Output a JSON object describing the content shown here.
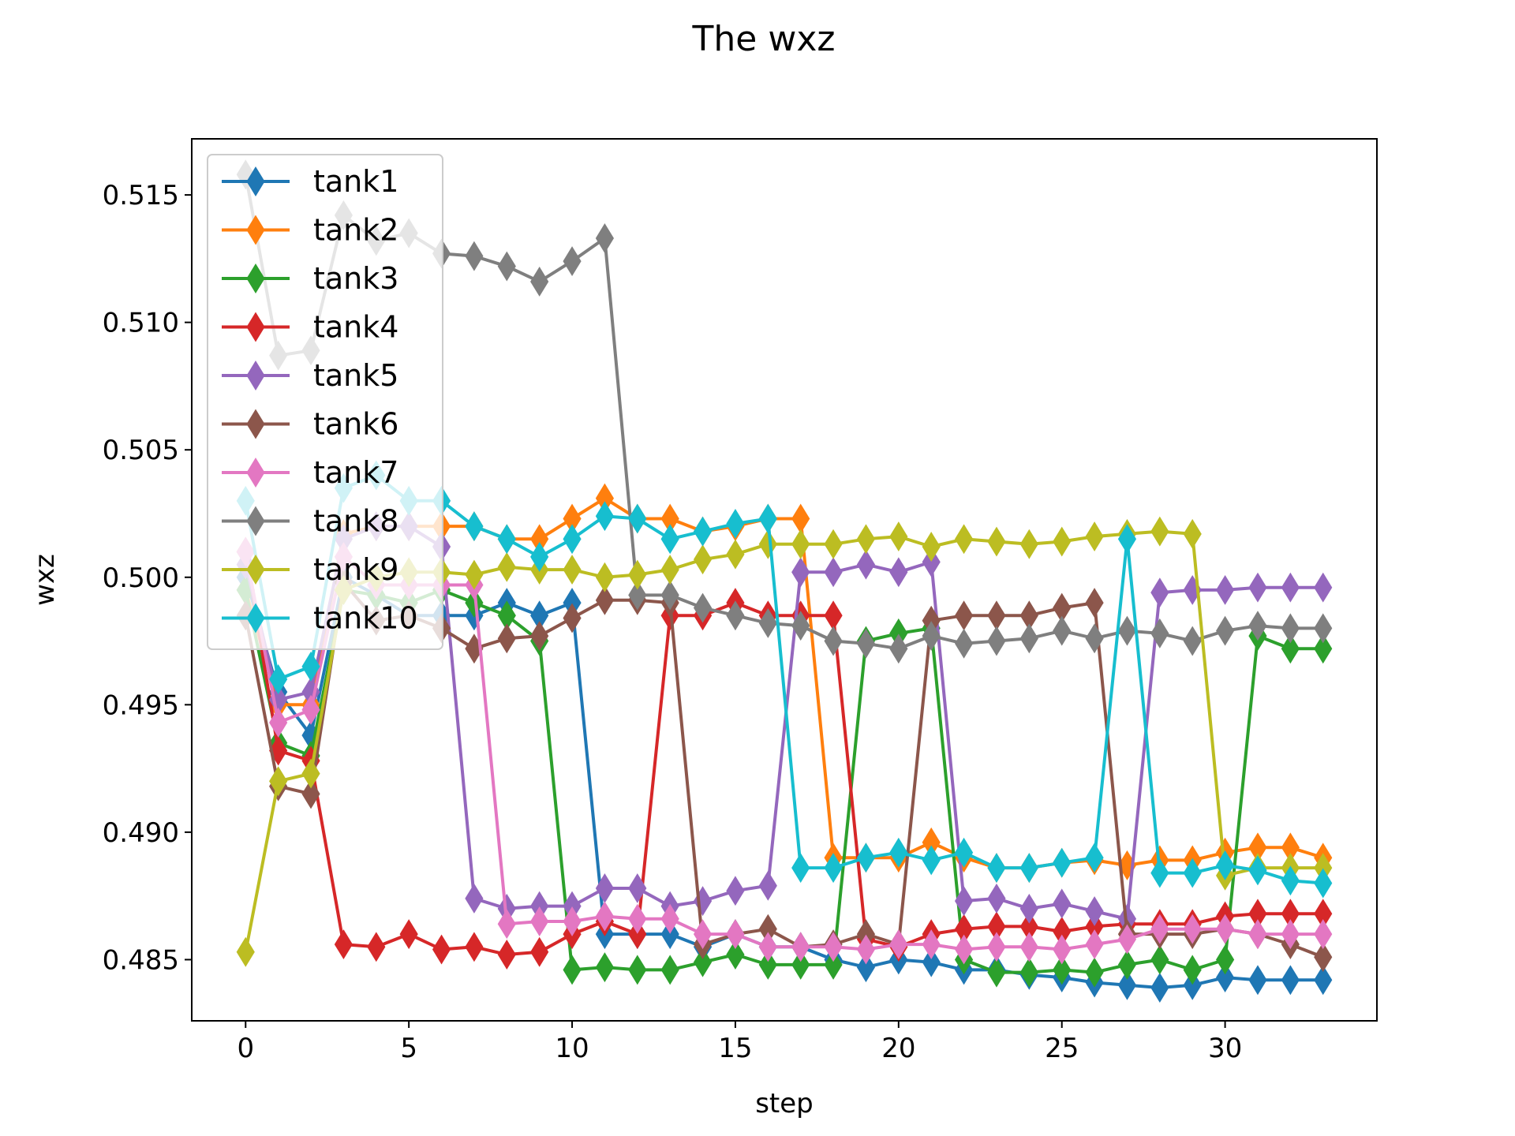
{
  "chart_data": {
    "type": "line",
    "title": "The wxz",
    "xlabel": "step",
    "ylabel": "wxz",
    "xlim": [
      -1.65,
      34.65
    ],
    "ylim": [
      0.4826,
      0.5172
    ],
    "xticks": [
      0,
      5,
      10,
      15,
      20,
      25,
      30
    ],
    "xtick_labels": [
      "0",
      "5",
      "10",
      "15",
      "20",
      "25",
      "30"
    ],
    "yticks": [
      0.485,
      0.49,
      0.495,
      0.5,
      0.505,
      0.51,
      0.515
    ],
    "ytick_labels": [
      "0.485",
      "0.490",
      "0.495",
      "0.500",
      "0.505",
      "0.510",
      "0.515"
    ],
    "grid": false,
    "legend_position": "upper-left",
    "marker": "thin-diamond",
    "x": [
      0,
      1,
      2,
      3,
      4,
      5,
      6,
      7,
      8,
      9,
      10,
      11,
      12,
      13,
      14,
      15,
      16,
      17,
      18,
      19,
      20,
      21,
      22,
      23,
      24,
      25,
      26,
      27,
      28,
      29,
      30,
      31,
      32,
      33
    ],
    "series": [
      {
        "name": "tank1",
        "color": "#1f77b4",
        "values": [
          0.5,
          0.4955,
          0.4938,
          0.5,
          0.4993,
          0.4985,
          0.4985,
          0.4985,
          0.499,
          0.4985,
          0.499,
          0.486,
          0.486,
          0.486,
          0.4855,
          0.486,
          0.4855,
          0.4855,
          0.485,
          0.4847,
          0.485,
          0.4849,
          0.4846,
          0.4846,
          0.4844,
          0.4843,
          0.4841,
          0.484,
          0.4839,
          0.484,
          0.4843,
          0.4842,
          0.4842,
          0.4842
        ]
      },
      {
        "name": "tank2",
        "color": "#ff7f0e",
        "values": [
          0.4995,
          0.495,
          0.495,
          0.5017,
          0.502,
          0.502,
          0.502,
          0.502,
          0.5015,
          0.5015,
          0.5023,
          0.5031,
          0.5023,
          0.5023,
          0.5018,
          0.502,
          0.5023,
          0.5023,
          0.489,
          0.489,
          0.489,
          0.4896,
          0.489,
          0.4886,
          0.4886,
          0.4888,
          0.4889,
          0.4887,
          0.4889,
          0.4889,
          0.4892,
          0.4894,
          0.4894,
          0.489
        ]
      },
      {
        "name": "tank3",
        "color": "#2ca02c",
        "values": [
          0.4995,
          0.4935,
          0.493,
          0.4995,
          0.4993,
          0.499,
          0.4995,
          0.499,
          0.4985,
          0.4975,
          0.4846,
          0.4847,
          0.4846,
          0.4846,
          0.4849,
          0.4852,
          0.4848,
          0.4848,
          0.4848,
          0.4975,
          0.4978,
          0.498,
          0.485,
          0.4845,
          0.4845,
          0.4846,
          0.4845,
          0.4848,
          0.485,
          0.4846,
          0.485,
          0.4977,
          0.4972,
          0.4972
        ]
      },
      {
        "name": "tank4",
        "color": "#d62728",
        "values": [
          0.501,
          0.4932,
          0.4928,
          0.4856,
          0.4855,
          0.486,
          0.4854,
          0.4855,
          0.4852,
          0.4853,
          0.486,
          0.4865,
          0.486,
          0.4985,
          0.4985,
          0.499,
          0.4985,
          0.4985,
          0.4985,
          0.4858,
          0.4855,
          0.486,
          0.4862,
          0.4863,
          0.4863,
          0.4861,
          0.4863,
          0.4864,
          0.4864,
          0.4864,
          0.4867,
          0.4868,
          0.4868,
          0.4868
        ]
      },
      {
        "name": "tank5",
        "color": "#9467bd",
        "values": [
          0.5005,
          0.4952,
          0.4955,
          0.5015,
          0.502,
          0.502,
          0.5012,
          0.4874,
          0.487,
          0.4871,
          0.4871,
          0.4878,
          0.4878,
          0.4871,
          0.4873,
          0.4877,
          0.4879,
          0.5002,
          0.5002,
          0.5005,
          0.5002,
          0.5006,
          0.4873,
          0.4874,
          0.487,
          0.4872,
          0.4869,
          0.4866,
          0.4994,
          0.4995,
          0.4995,
          0.4996,
          0.4996,
          0.4996
        ]
      },
      {
        "name": "tank6",
        "color": "#8c564b",
        "values": [
          0.4985,
          0.4918,
          0.4915,
          0.4998,
          0.4983,
          0.4985,
          0.498,
          0.4972,
          0.4976,
          0.4977,
          0.4984,
          0.4991,
          0.4991,
          0.499,
          0.4856,
          0.486,
          0.4862,
          0.4855,
          0.4856,
          0.486,
          0.4856,
          0.4983,
          0.4985,
          0.4985,
          0.4985,
          0.4988,
          0.499,
          0.486,
          0.486,
          0.486,
          0.4862,
          0.486,
          0.4856,
          0.4851
        ]
      },
      {
        "name": "tank7",
        "color": "#e377c2",
        "values": [
          0.501,
          0.4943,
          0.4948,
          0.5008,
          0.4997,
          0.4997,
          0.4997,
          0.4997,
          0.4864,
          0.4865,
          0.4865,
          0.4867,
          0.4866,
          0.4866,
          0.486,
          0.486,
          0.4855,
          0.4855,
          0.4855,
          0.4854,
          0.4856,
          0.4856,
          0.4854,
          0.4855,
          0.4855,
          0.4854,
          0.4856,
          0.4858,
          0.4862,
          0.4862,
          0.4862,
          0.486,
          0.486,
          0.486
        ]
      },
      {
        "name": "tank8",
        "color": "#7f7f7f",
        "values": [
          0.5158,
          0.5087,
          0.5089,
          0.5142,
          0.5132,
          0.5135,
          0.5127,
          0.5126,
          0.5122,
          0.5116,
          0.5124,
          0.5133,
          0.4993,
          0.4993,
          0.4988,
          0.4985,
          0.4982,
          0.4981,
          0.4975,
          0.4974,
          0.4972,
          0.4977,
          0.4974,
          0.4975,
          0.4976,
          0.4979,
          0.4976,
          0.4979,
          0.4978,
          0.4975,
          0.4979,
          0.4981,
          0.498,
          0.498
        ]
      },
      {
        "name": "tank9",
        "color": "#bcbd22",
        "values": [
          0.4853,
          0.492,
          0.4923,
          0.4995,
          0.5,
          0.5002,
          0.5002,
          0.5001,
          0.5004,
          0.5003,
          0.5003,
          0.5,
          0.5001,
          0.5003,
          0.5007,
          0.5009,
          0.5013,
          0.5013,
          0.5013,
          0.5015,
          0.5016,
          0.5012,
          0.5015,
          0.5014,
          0.5013,
          0.5014,
          0.5016,
          0.5017,
          0.5018,
          0.5017,
          0.4883,
          0.4886,
          0.4886,
          0.4886
        ]
      },
      {
        "name": "tank10",
        "color": "#17becf",
        "values": [
          0.503,
          0.496,
          0.4965,
          0.5035,
          0.504,
          0.503,
          0.503,
          0.502,
          0.5015,
          0.5008,
          0.5015,
          0.5024,
          0.5023,
          0.5015,
          0.5018,
          0.5021,
          0.5023,
          0.4886,
          0.4886,
          0.489,
          0.4892,
          0.4889,
          0.4892,
          0.4886,
          0.4886,
          0.4888,
          0.489,
          0.5015,
          0.4884,
          0.4884,
          0.4887,
          0.4885,
          0.4881,
          0.488
        ]
      }
    ]
  }
}
